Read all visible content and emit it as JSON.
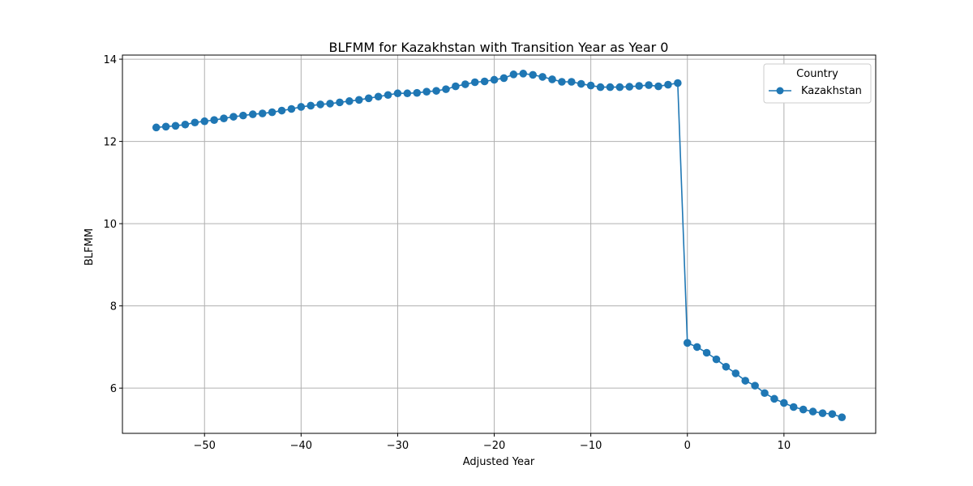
{
  "chart_data": {
    "type": "line",
    "title": "BLFMM for Kazakhstan with Transition Year as Year 0",
    "xlabel": "Adjusted Year",
    "ylabel": "BLFMM",
    "xlim": [
      -58.5,
      19.5
    ],
    "ylim": [
      4.9,
      14.1
    ],
    "x_ticks": [
      -50,
      -40,
      -30,
      -20,
      -10,
      0,
      10
    ],
    "x_tick_labels": [
      "−50",
      "−40",
      "−30",
      "−20",
      "−10",
      "0",
      "10"
    ],
    "y_ticks": [
      6,
      8,
      10,
      12,
      14
    ],
    "y_tick_labels": [
      "6",
      "8",
      "10",
      "12",
      "14"
    ],
    "grid": true,
    "legend": {
      "title": "Country",
      "placement": "top-right"
    },
    "series": [
      {
        "name": "Kazakhstan",
        "color": "#1f77b4",
        "marker": "circle",
        "x": [
          -55,
          -54,
          -53,
          -52,
          -51,
          -50,
          -49,
          -48,
          -47,
          -46,
          -45,
          -44,
          -43,
          -42,
          -41,
          -40,
          -39,
          -38,
          -37,
          -36,
          -35,
          -34,
          -33,
          -32,
          -31,
          -30,
          -29,
          -28,
          -27,
          -26,
          -25,
          -24,
          -23,
          -22,
          -21,
          -20,
          -19,
          -18,
          -17,
          -16,
          -15,
          -14,
          -13,
          -12,
          -11,
          -10,
          -9,
          -8,
          -7,
          -6,
          -5,
          -4,
          -3,
          -2,
          -1,
          0,
          1,
          2,
          3,
          4,
          5,
          6,
          7,
          8,
          9,
          10,
          11,
          12,
          13,
          14,
          15,
          16
        ],
        "y": [
          12.34,
          12.36,
          12.38,
          12.41,
          12.46,
          12.49,
          12.52,
          12.56,
          12.6,
          12.63,
          12.66,
          12.68,
          12.71,
          12.75,
          12.79,
          12.84,
          12.87,
          12.9,
          12.92,
          12.95,
          12.98,
          13.01,
          13.05,
          13.09,
          13.13,
          13.17,
          13.17,
          13.18,
          13.21,
          13.23,
          13.27,
          13.34,
          13.39,
          13.44,
          13.46,
          13.5,
          13.54,
          13.63,
          13.65,
          13.62,
          13.57,
          13.51,
          13.45,
          13.45,
          13.4,
          13.36,
          13.32,
          13.32,
          13.32,
          13.33,
          13.35,
          13.37,
          13.34,
          13.38,
          13.42,
          7.1,
          7.0,
          6.86,
          6.7,
          6.52,
          6.36,
          6.18,
          6.06,
          5.88,
          5.74,
          5.64,
          5.54,
          5.48,
          5.43,
          5.39,
          5.37,
          5.29
        ]
      }
    ]
  }
}
